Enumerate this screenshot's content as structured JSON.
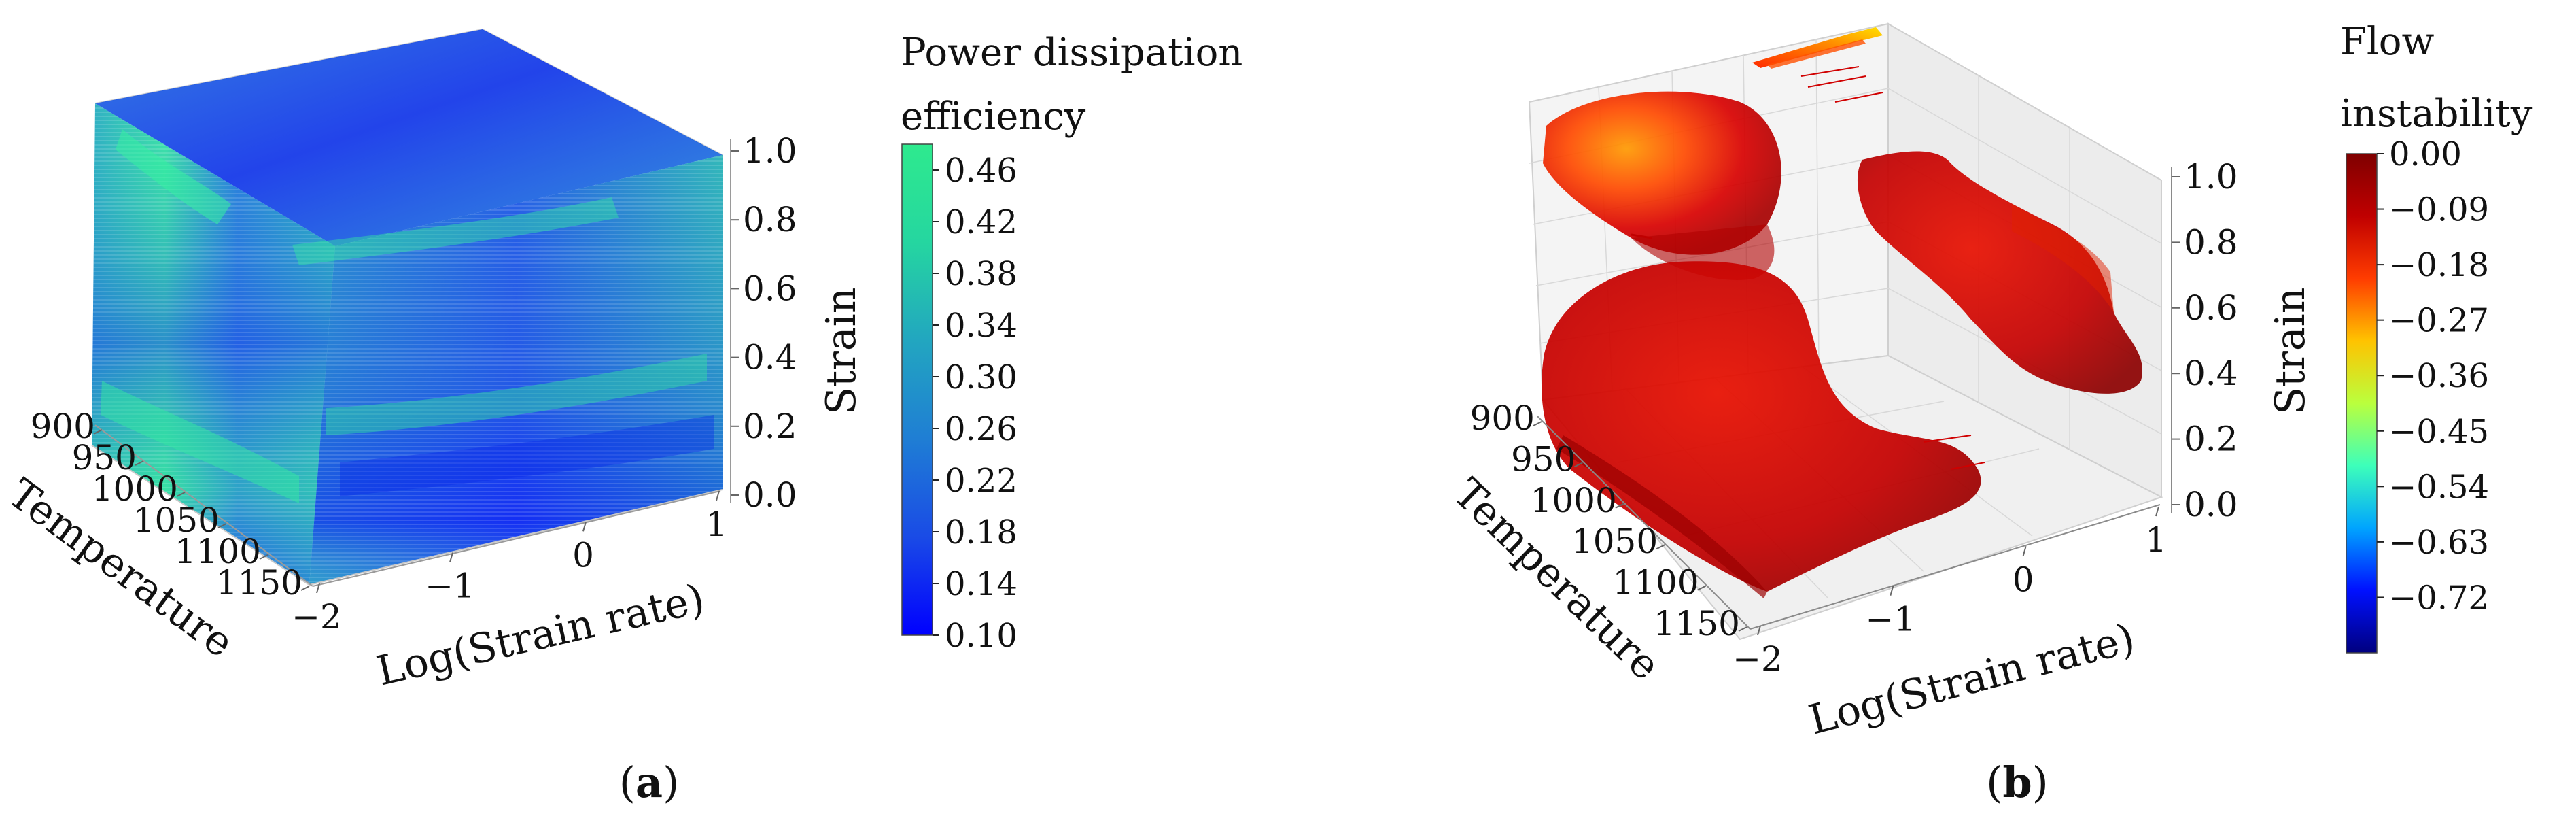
{
  "chart_data": [
    {
      "panel": "(a)",
      "type": "heatmap",
      "subtype": "3d-volume",
      "panel_label": "a",
      "xlabel": "Temperature",
      "ylabel": "Log(Strain rate)",
      "zlabel": "Strain",
      "x_ticks": [
        "900",
        "950",
        "1000",
        "1050",
        "1100",
        "1150"
      ],
      "y_ticks": [
        "−2",
        "−1",
        "0",
        "1"
      ],
      "z_ticks": [
        "0.0",
        "0.2",
        "0.4",
        "0.6",
        "0.8",
        "1.0"
      ],
      "xlim": [
        900,
        1150
      ],
      "ylim": [
        -2,
        1
      ],
      "zlim": [
        0,
        1
      ],
      "colorbar": {
        "title_lines": [
          "Power dissipation",
          "efficiency"
        ],
        "ticks": [
          "0.46",
          "0.42",
          "0.38",
          "0.34",
          "0.30",
          "0.26",
          "0.22",
          "0.18",
          "0.14",
          "0.10"
        ],
        "range": [
          0.1,
          0.48
        ],
        "colors": [
          "#0000ff",
          "#1a4be6",
          "#1f7ed4",
          "#22a6c0",
          "#25d6a0",
          "#2eea8e"
        ]
      }
    },
    {
      "panel": "(b)",
      "type": "heatmap",
      "subtype": "3d-isosurface",
      "panel_label": "b",
      "xlabel": "Temperature",
      "ylabel": "Log(Strain rate)",
      "zlabel": "Strain",
      "x_ticks": [
        "900",
        "950",
        "1000",
        "1050",
        "1100",
        "1150"
      ],
      "y_ticks": [
        "−2",
        "−1",
        "0",
        "1"
      ],
      "z_ticks": [
        "0.0",
        "0.2",
        "0.4",
        "0.6",
        "0.8",
        "1.0"
      ],
      "xlim": [
        900,
        1150
      ],
      "ylim": [
        -2,
        1
      ],
      "zlim": [
        0,
        1
      ],
      "colorbar": {
        "title_lines": [
          "Flow",
          "instability"
        ],
        "ticks": [
          "0.00",
          "−0.09",
          "−0.18",
          "−0.27",
          "−0.36",
          "−0.45",
          "−0.54",
          "−0.63",
          "−0.72"
        ],
        "range": [
          -0.81,
          0.0
        ],
        "colors": [
          "#00007f",
          "#0010ff",
          "#00a4ff",
          "#3dffba",
          "#baff3d",
          "#ffc300",
          "#ff3c00",
          "#c00000",
          "#7f0000"
        ]
      }
    }
  ]
}
